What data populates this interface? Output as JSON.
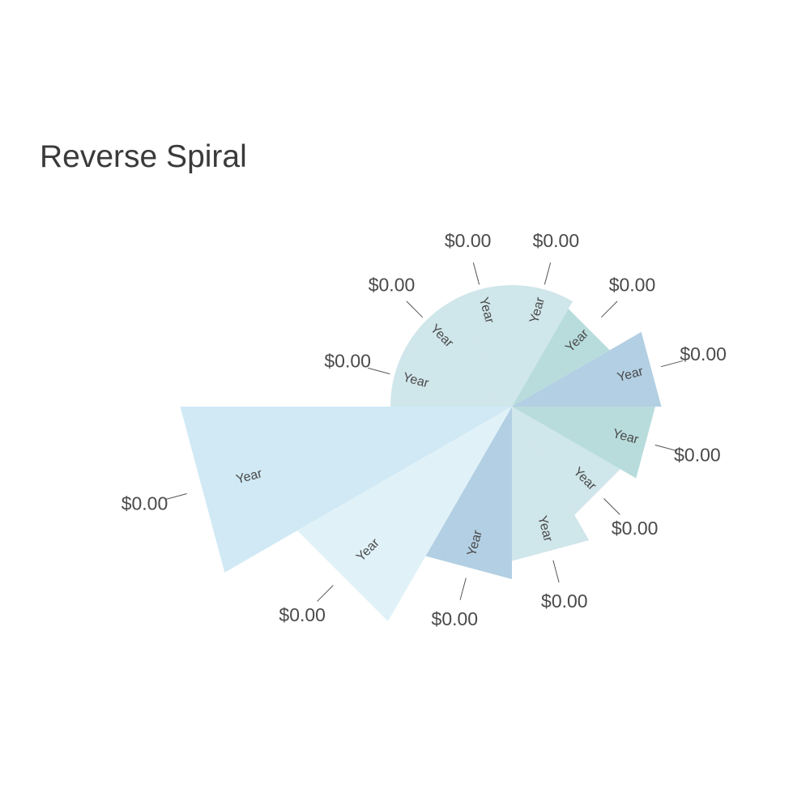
{
  "chart_data": {
    "type": "pie",
    "title": "Reverse Spiral",
    "center_value": "",
    "categories": [
      "Year",
      "Year",
      "Year",
      "Year",
      "Year",
      "Year",
      "Year",
      "Year",
      "Year",
      "Year",
      "Year",
      "Year"
    ],
    "value_labels": [
      "$0.00",
      "$0.00",
      "$0.00",
      "$0.00",
      "$0.00",
      "$0.00",
      "$0.00",
      "$0.00",
      "$0.00",
      "$0.00",
      "$0.00",
      "$0.00"
    ],
    "slices": [
      {
        "category": "Year",
        "value_label": "$0.00",
        "relative_radius": 1.0,
        "color": "#cfe6ea"
      },
      {
        "category": "Year",
        "value_label": "$0.00",
        "relative_radius": 1.0,
        "color": "#cfe6ea"
      },
      {
        "category": "Year",
        "value_label": "$0.00",
        "relative_radius": 1.0,
        "color": "#cfe6ea"
      },
      {
        "category": "Year",
        "value_label": "$0.00",
        "relative_radius": 0.93,
        "color": "#b8dcdc"
      },
      {
        "category": "Year",
        "value_label": "$0.00",
        "relative_radius": 1.23,
        "color": "#b3cfe3"
      },
      {
        "category": "Year",
        "value_label": "$0.00",
        "relative_radius": 1.18,
        "color": "#b8dcdc"
      },
      {
        "category": "Year",
        "value_label": "$0.00",
        "relative_radius": 1.03,
        "color": "#cfe6ea"
      },
      {
        "category": "Year",
        "value_label": "$0.00",
        "relative_radius": 1.27,
        "color": "#cfe6ea"
      },
      {
        "category": "Year",
        "value_label": "$0.00",
        "relative_radius": 1.42,
        "color": "#b3cfe3"
      },
      {
        "category": "Year",
        "value_label": "$0.00",
        "relative_radius": 2.04,
        "color": "#e0f2f8"
      },
      {
        "category": "Year",
        "value_label": "$0.00",
        "relative_radius": 2.73,
        "color": "#d0e9f5"
      },
      {
        "category": "Year",
        "value_label": "$0.00",
        "relative_radius": 1.0,
        "color": "#cfe6ea"
      }
    ]
  }
}
